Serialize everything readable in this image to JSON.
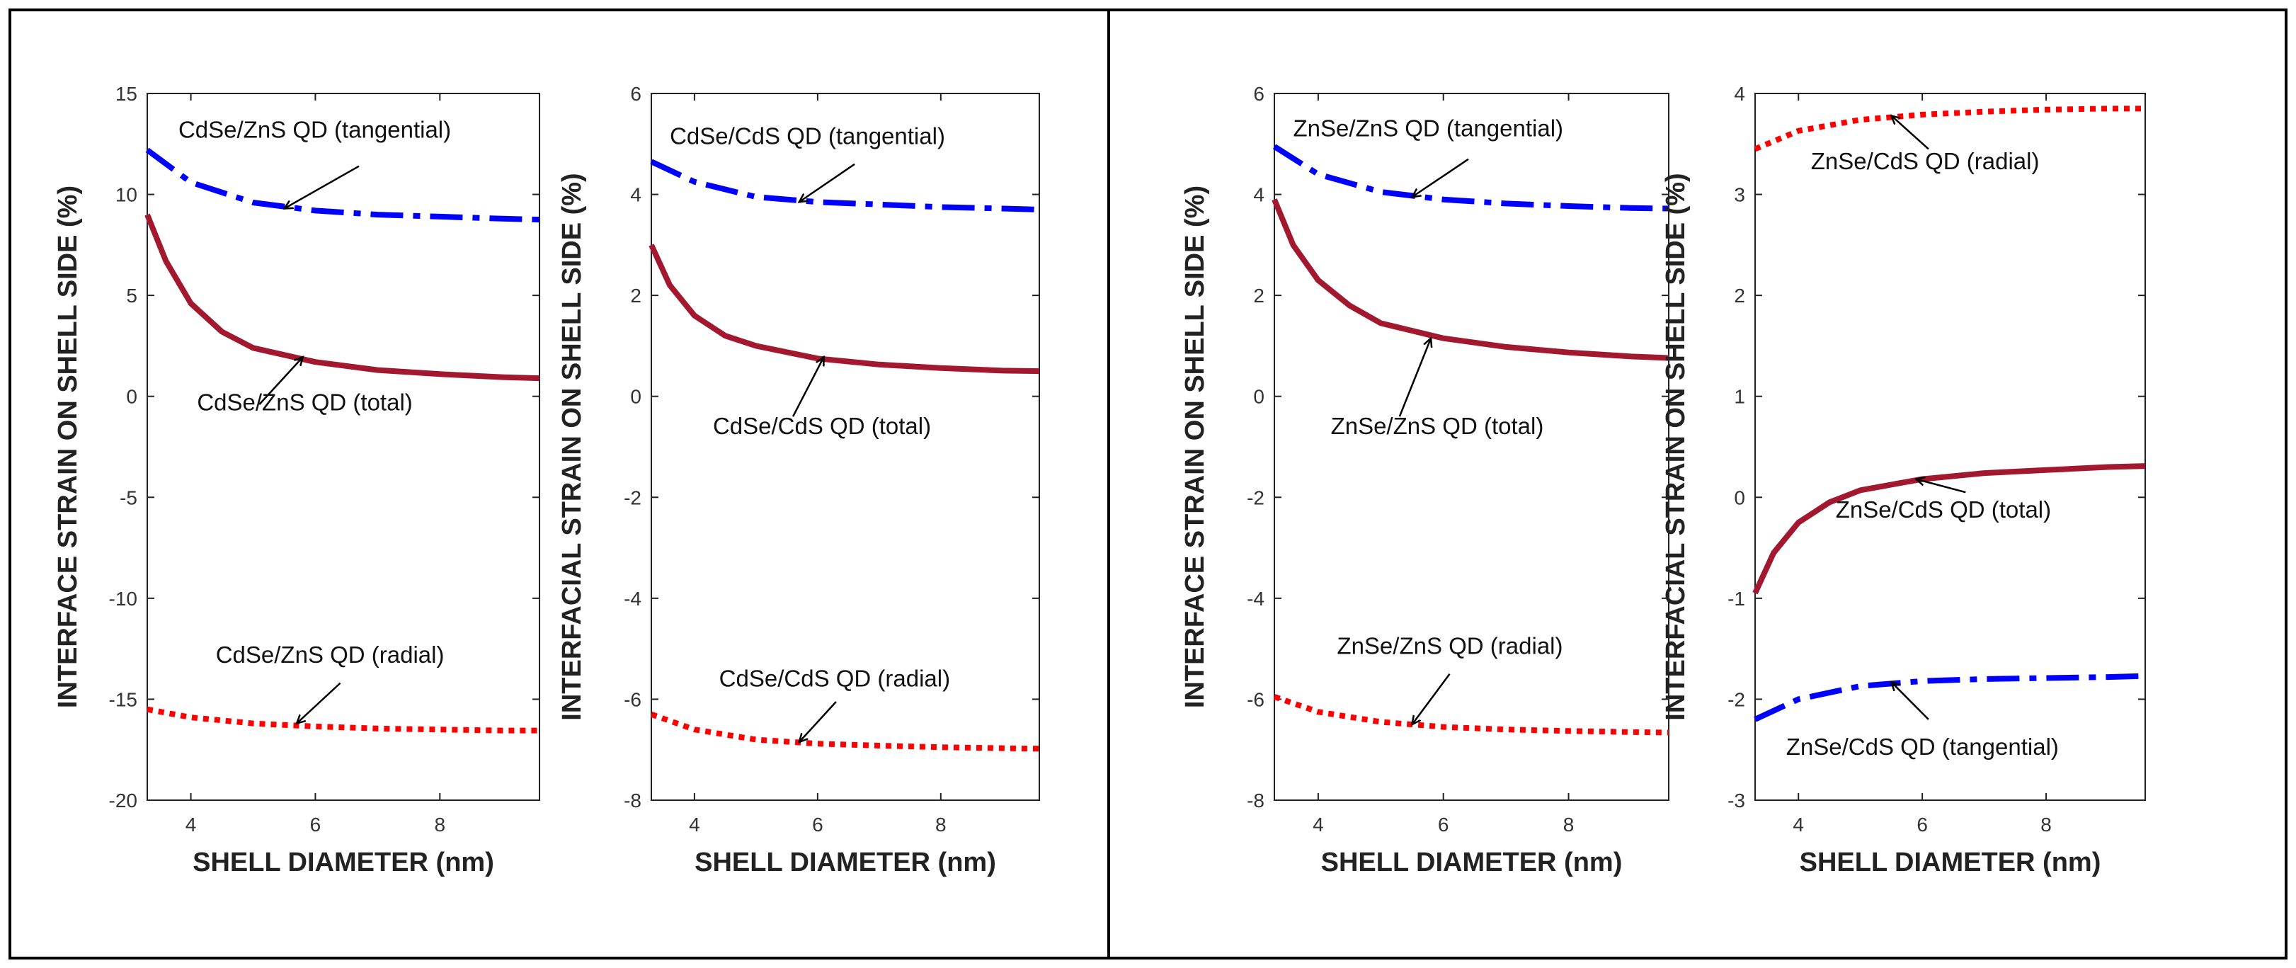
{
  "chart_data": [
    {
      "type": "line",
      "title": "",
      "xlabel": "SHELL DIAMETER (nm)",
      "ylabel": "INTERFACE  STRAIN ON SHELL SIDE (%)",
      "xlim": [
        3.3,
        9.6
      ],
      "ylim": [
        -20,
        15
      ],
      "xticks": [
        "4",
        "6",
        "8"
      ],
      "yticks": [
        "15",
        "10",
        "5",
        "0",
        "-5",
        "-10",
        "-15",
        "-20"
      ],
      "series": [
        {
          "style": "dashdot",
          "color": "#0000ff",
          "x": [
            3.3,
            4.0,
            5.0,
            6.0,
            7.0,
            8.0,
            9.0,
            9.6
          ],
          "y": [
            12.2,
            10.6,
            9.6,
            9.2,
            9.0,
            8.9,
            8.8,
            8.75
          ]
        },
        {
          "style": "solid",
          "color": "#a2192f",
          "x": [
            3.3,
            3.6,
            4.0,
            4.5,
            5.0,
            6.0,
            7.0,
            8.0,
            9.0,
            9.6
          ],
          "y": [
            9.0,
            6.7,
            4.6,
            3.2,
            2.4,
            1.7,
            1.3,
            1.1,
            0.95,
            0.9
          ]
        },
        {
          "style": "dotted",
          "color": "#ff0000",
          "x": [
            3.3,
            4.0,
            5.0,
            6.0,
            7.0,
            8.0,
            9.0,
            9.6
          ],
          "y": [
            -15.5,
            -15.9,
            -16.2,
            -16.35,
            -16.45,
            -16.5,
            -16.55,
            -16.55
          ]
        }
      ],
      "annotations": [
        {
          "text": "CdSe/ZnS QD (tangential)",
          "x": 3.8,
          "y": 12.8,
          "ax": 5.5,
          "ay": 9.3,
          "bx": 6.7,
          "by": 11.4
        },
        {
          "text": "CdSe/ZnS QD (total)",
          "x": 4.1,
          "y": -0.7,
          "ax": 5.8,
          "ay": 1.95,
          "bx": 5.1,
          "by": -0.4
        },
        {
          "text": "CdSe/ZnS QD (radial)",
          "x": 4.4,
          "y": -13.2,
          "ax": 5.7,
          "ay": -16.2,
          "bx": 6.4,
          "by": -14.2
        }
      ]
    },
    {
      "type": "line",
      "title": "",
      "xlabel": "SHELL DIAMETER (nm)",
      "ylabel": "INTERFACIAL STRAIN ON SHELL SIDE (%)",
      "xlim": [
        3.3,
        9.6
      ],
      "ylim": [
        -8,
        6
      ],
      "xticks": [
        "4",
        "6",
        "8"
      ],
      "yticks": [
        "6",
        "4",
        "2",
        "0",
        "-2",
        "-4",
        "-6",
        "-8"
      ],
      "series": [
        {
          "style": "dashdot",
          "color": "#0000ff",
          "x": [
            3.3,
            4.0,
            5.0,
            6.0,
            7.0,
            8.0,
            9.0,
            9.6
          ],
          "y": [
            4.65,
            4.25,
            3.95,
            3.85,
            3.8,
            3.75,
            3.72,
            3.7
          ]
        },
        {
          "style": "solid",
          "color": "#a2192f",
          "x": [
            3.3,
            3.6,
            4.0,
            4.5,
            5.0,
            6.0,
            7.0,
            8.0,
            9.0,
            9.6
          ],
          "y": [
            3.0,
            2.2,
            1.6,
            1.2,
            1.0,
            0.75,
            0.63,
            0.56,
            0.51,
            0.5
          ]
        },
        {
          "style": "dotted",
          "color": "#ff0000",
          "x": [
            3.3,
            4.0,
            5.0,
            6.0,
            7.0,
            8.0,
            9.0,
            9.6
          ],
          "y": [
            -6.3,
            -6.6,
            -6.8,
            -6.88,
            -6.92,
            -6.95,
            -6.97,
            -6.98
          ]
        }
      ],
      "annotations": [
        {
          "text": "CdSe/CdS QD (tangential)",
          "x": 3.6,
          "y": 5.0,
          "ax": 5.7,
          "ay": 3.85,
          "bx": 6.6,
          "by": 4.6
        },
        {
          "text": "CdSe/CdS QD (total)",
          "x": 4.3,
          "y": -0.75,
          "ax": 6.1,
          "ay": 0.78,
          "bx": 5.6,
          "by": -0.4
        },
        {
          "text": "CdSe/CdS QD (radial)",
          "x": 4.4,
          "y": -5.75,
          "ax": 5.7,
          "ay": -6.85,
          "bx": 6.3,
          "by": -6.05
        }
      ]
    },
    {
      "type": "line",
      "title": "",
      "xlabel": "SHELL DIAMETER (nm)",
      "ylabel": "INTERFACE  STRAIN ON SHELL SIDE (%)",
      "xlim": [
        3.3,
        9.6
      ],
      "ylim": [
        -8,
        6
      ],
      "xticks": [
        "4",
        "6",
        "8"
      ],
      "yticks": [
        "6",
        "4",
        "2",
        "0",
        "-2",
        "-4",
        "-6",
        "-8"
      ],
      "series": [
        {
          "style": "dashdot",
          "color": "#0000ff",
          "x": [
            3.3,
            4.0,
            5.0,
            6.0,
            7.0,
            8.0,
            9.0,
            9.6
          ],
          "y": [
            4.95,
            4.4,
            4.05,
            3.9,
            3.82,
            3.77,
            3.73,
            3.72
          ]
        },
        {
          "style": "solid",
          "color": "#a2192f",
          "x": [
            3.3,
            3.6,
            4.0,
            4.5,
            5.0,
            6.0,
            7.0,
            8.0,
            9.0,
            9.6
          ],
          "y": [
            3.9,
            3.0,
            2.3,
            1.8,
            1.45,
            1.15,
            0.98,
            0.87,
            0.79,
            0.76
          ]
        },
        {
          "style": "dotted",
          "color": "#ff0000",
          "x": [
            3.3,
            4.0,
            5.0,
            6.0,
            7.0,
            8.0,
            9.0,
            9.6
          ],
          "y": [
            -5.95,
            -6.25,
            -6.45,
            -6.55,
            -6.6,
            -6.63,
            -6.65,
            -6.66
          ]
        }
      ],
      "annotations": [
        {
          "text": "ZnSe/ZnS QD (tangential)",
          "x": 3.6,
          "y": 5.15,
          "ax": 5.5,
          "ay": 3.95,
          "bx": 6.4,
          "by": 4.7
        },
        {
          "text": "ZnSe/ZnS QD (total)",
          "x": 4.2,
          "y": -0.75,
          "ax": 5.8,
          "ay": 1.15,
          "bx": 5.3,
          "by": -0.4
        },
        {
          "text": "ZnSe/ZnS QD (radial)",
          "x": 4.3,
          "y": -5.1,
          "ax": 5.5,
          "ay": -6.5,
          "bx": 6.1,
          "by": -5.5
        }
      ]
    },
    {
      "type": "line",
      "title": "",
      "xlabel": "SHELL DIAMETER (nm)",
      "ylabel": "INTERFACIAL STRAIN ON SHELL SIDE (%)",
      "xlim": [
        3.3,
        9.6
      ],
      "ylim": [
        -3,
        4
      ],
      "xticks": [
        "4",
        "6",
        "8"
      ],
      "yticks": [
        "4",
        "3",
        "2",
        "1",
        "0",
        "-1",
        "-2",
        "-3"
      ],
      "series": [
        {
          "style": "dotted",
          "color": "#ff0000",
          "x": [
            3.3,
            4.0,
            5.0,
            6.0,
            7.0,
            8.0,
            9.0,
            9.6
          ],
          "y": [
            3.45,
            3.63,
            3.74,
            3.79,
            3.82,
            3.84,
            3.85,
            3.85
          ]
        },
        {
          "style": "solid",
          "color": "#a2192f",
          "x": [
            3.3,
            3.6,
            4.0,
            4.5,
            5.0,
            6.0,
            7.0,
            8.0,
            9.0,
            9.6
          ],
          "y": [
            -0.95,
            -0.55,
            -0.25,
            -0.05,
            0.07,
            0.18,
            0.24,
            0.27,
            0.3,
            0.31
          ]
        },
        {
          "style": "dashdot",
          "color": "#0000ff",
          "x": [
            3.3,
            4.0,
            5.0,
            6.0,
            7.0,
            8.0,
            9.0,
            9.6
          ],
          "y": [
            -2.2,
            -2.0,
            -1.87,
            -1.82,
            -1.8,
            -1.79,
            -1.78,
            -1.77
          ]
        }
      ],
      "annotations": [
        {
          "text": "ZnSe/CdS QD (radial)",
          "x": 4.2,
          "y": 3.25,
          "ax": 5.5,
          "ay": 3.78,
          "bx": 6.1,
          "by": 3.45
        },
        {
          "text": "ZnSe/CdS QD (total)",
          "x": 4.6,
          "y": -0.2,
          "ax": 5.9,
          "ay": 0.18,
          "bx": 6.7,
          "by": 0.05
        },
        {
          "text": "ZnSe/CdS QD (tangential)",
          "x": 3.8,
          "y": -2.55,
          "ax": 5.5,
          "ay": -1.83,
          "bx": 6.1,
          "by": -2.2
        }
      ]
    }
  ]
}
